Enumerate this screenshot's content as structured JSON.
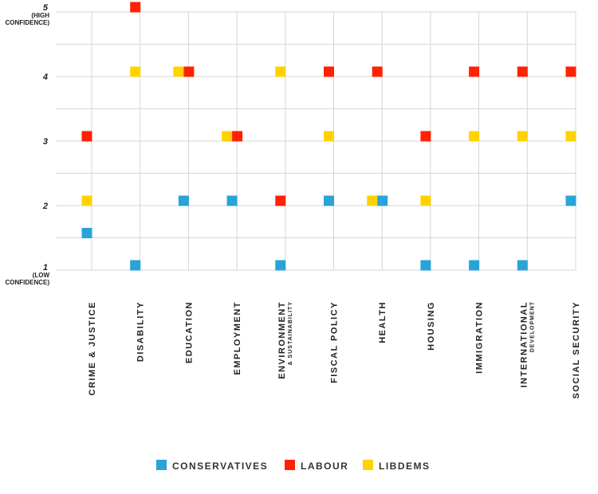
{
  "chart_data": {
    "type": "scatter",
    "title": "",
    "xlabel": "",
    "ylabel": "",
    "ylim": [
      1,
      5
    ],
    "grid": true,
    "legend_position": "bottom",
    "y_ticks": [
      {
        "value": 5,
        "label": "5",
        "sub": [
          "(HIGH",
          "CONFIDENCE)"
        ]
      },
      {
        "value": 4,
        "label": "4",
        "sub": []
      },
      {
        "value": 3,
        "label": "3",
        "sub": []
      },
      {
        "value": 2,
        "label": "2",
        "sub": []
      },
      {
        "value": 1,
        "label": "1",
        "sub": [
          "(LOW",
          "CONFIDENCE)"
        ]
      }
    ],
    "categories": [
      {
        "label": "CRIME & JUSTICE"
      },
      {
        "label": "DISABILITY"
      },
      {
        "label": "EDUCATION"
      },
      {
        "label": "EMPLOYMENT"
      },
      {
        "label": "ENVIRONMENT",
        "sublabel": "& SUSTAINABILITY"
      },
      {
        "label": "FISCAL POLICY"
      },
      {
        "label": "HEALTH"
      },
      {
        "label": "HOUSING"
      },
      {
        "label": "IMMIGRATION"
      },
      {
        "label": "INTERNATIONAL",
        "sublabel": "DEVELOPMENT"
      },
      {
        "label": "SOCIAL SECURITY"
      }
    ],
    "series": [
      {
        "name": "CONSERVATIVES",
        "color": "#29a3d8",
        "values": [
          1.5,
          1,
          2,
          2,
          1,
          2,
          2,
          1,
          1,
          1,
          2
        ]
      },
      {
        "name": "LABOUR",
        "color": "#ff2200",
        "values": [
          3,
          5,
          4,
          3,
          2,
          4,
          4,
          3,
          4,
          4,
          4
        ]
      },
      {
        "name": "LIBDEMS",
        "color": "#ffd200",
        "values": [
          2,
          4,
          4,
          3,
          4,
          3,
          2,
          2,
          3,
          3,
          3
        ]
      }
    ]
  }
}
